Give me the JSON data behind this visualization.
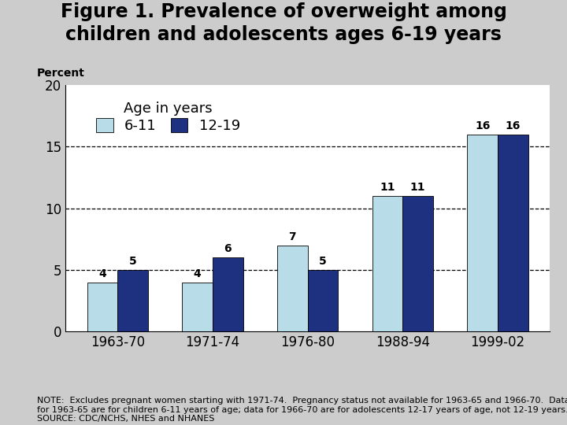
{
  "title": "Figure 1. Prevalence of overweight among\nchildren and adolescents ages 6-19 years",
  "ylabel": "Percent",
  "categories": [
    "1963-70",
    "1971-74",
    "1976-80",
    "1988-94",
    "1999-02"
  ],
  "values_6_11": [
    4,
    4,
    7,
    11,
    16
  ],
  "values_12_19": [
    5,
    6,
    5,
    11,
    16
  ],
  "color_6_11": "#b8dce8",
  "color_12_19": "#1e3080",
  "ylim": [
    0,
    20
  ],
  "yticks": [
    0,
    5,
    10,
    15,
    20
  ],
  "dashed_lines": [
    5,
    10,
    15
  ],
  "bg_color": "#cccccc",
  "plot_bg_color": "#ffffff",
  "bar_width": 0.32,
  "legend_title": "Age in years",
  "legend_labels": [
    "6-11",
    "12-19"
  ],
  "note_text": "NOTE:  Excludes pregnant women starting with 1971-74.  Pregnancy status not available for 1963-65 and 1966-70.  Data\nfor 1963-65 are for children 6-11 years of age; data for 1966-70 are for adolescents 12-17 years of age, not 12-19 years.\nSOURCE: CDC/NCHS, NHES and NHANES",
  "title_fontsize": 17,
  "ylabel_fontsize": 10,
  "tick_fontsize": 12,
  "note_fontsize": 8,
  "bar_label_fontsize": 10,
  "legend_fontsize": 13,
  "legend_title_fontsize": 13
}
